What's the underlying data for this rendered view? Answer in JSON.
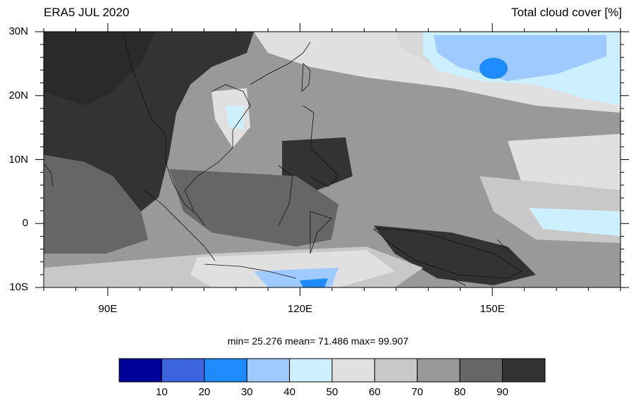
{
  "header": {
    "left_title": "ERA5 JUL 2020",
    "right_title": "Total cloud cover [%]"
  },
  "axes": {
    "lat_labels": [
      "30N",
      "20N",
      "10N",
      "0",
      "10S"
    ],
    "lat_values": [
      30,
      20,
      10,
      0,
      -10
    ],
    "lon_labels": [
      "90E",
      "120E",
      "150E"
    ],
    "lon_values": [
      90,
      120,
      150
    ],
    "lon_range": [
      80,
      170
    ],
    "lat_range": [
      -10,
      30
    ]
  },
  "stats": {
    "text": "min=  25.276  mean=  71.486  max=  99.907",
    "min": 25.276,
    "mean": 71.486,
    "max": 99.907
  },
  "colorbar": {
    "labels": [
      "10",
      "20",
      "30",
      "40",
      "50",
      "60",
      "70",
      "80",
      "90"
    ],
    "colors": [
      "#00009a",
      "#3d64e0",
      "#1e8cff",
      "#9ecaff",
      "#cdf0ff",
      "#e0e0e0",
      "#c8c8c8",
      "#999999",
      "#666666",
      "#333333"
    ]
  },
  "palette": {
    "coast": "#111111"
  }
}
